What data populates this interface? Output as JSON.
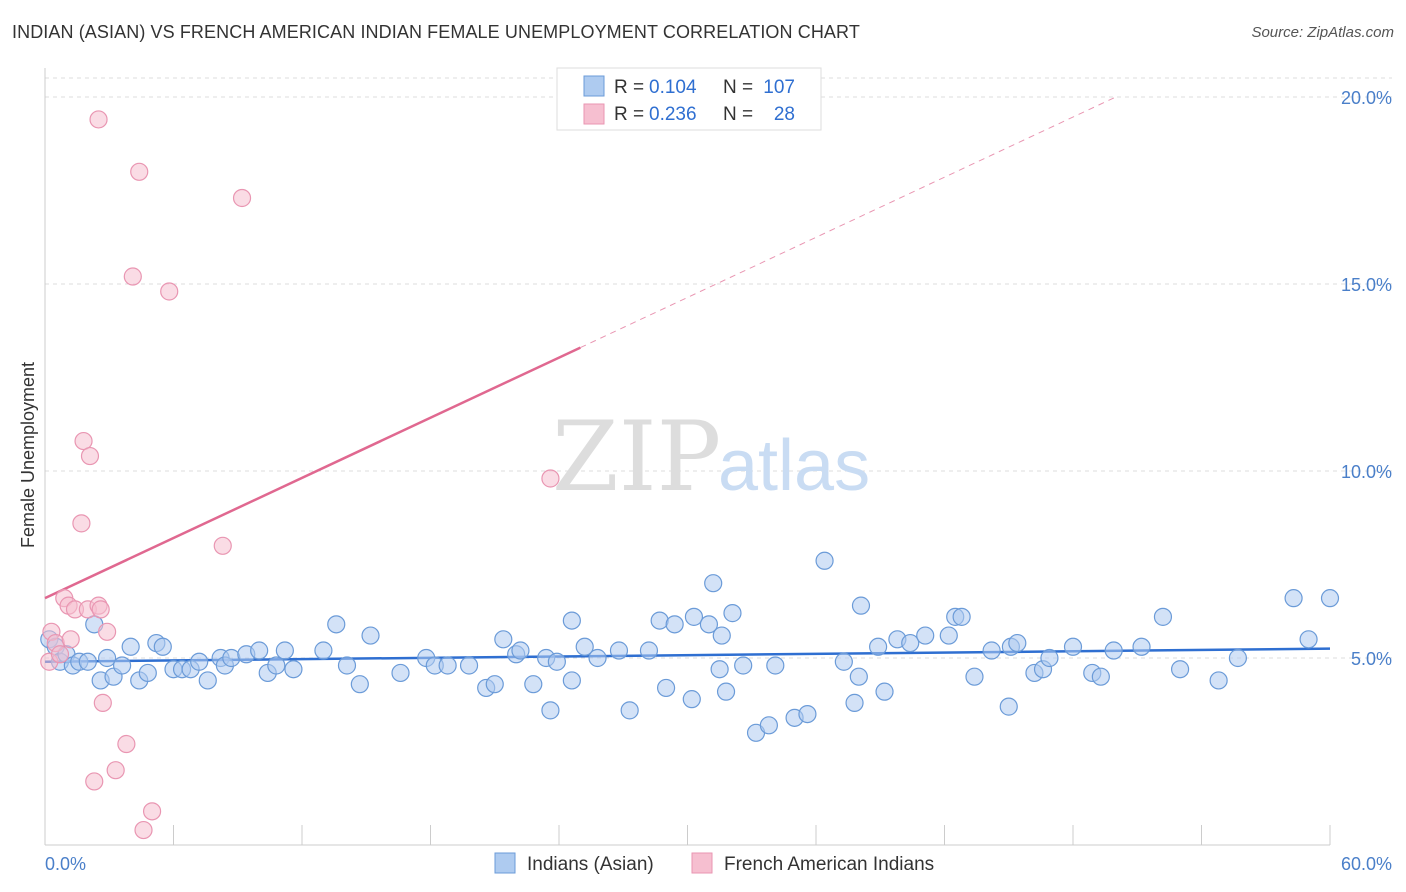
{
  "header": {
    "title": "INDIAN (ASIAN) VS FRENCH AMERICAN INDIAN FEMALE UNEMPLOYMENT CORRELATION CHART",
    "source": "Source: ZipAtlas.com"
  },
  "watermark": {
    "zip": "ZIP",
    "atlas": "atlas"
  },
  "colors": {
    "blue_fill": "#aecbf0",
    "blue_stroke": "#6b9bd8",
    "blue_line": "#2f6fd1",
    "pink_fill": "#f6bfd0",
    "pink_stroke": "#e996b2",
    "pink_line": "#e06890",
    "grid": "#dddddd",
    "tick_text": "#4a7fc9"
  },
  "legend": {
    "rows": [
      {
        "r_label": "R =",
        "r_value": "0.104",
        "n_label": "N =",
        "n_value": "107"
      },
      {
        "r_label": "R =",
        "r_value": "0.236",
        "n_label": "N =",
        "n_value": "28"
      }
    ]
  },
  "bottom_legend": [
    "Indians (Asian)",
    "French American Indians"
  ],
  "chart_data": {
    "type": "scatter",
    "ylabel": "Female Unemployment",
    "xlim": [
      0,
      60
    ],
    "ylim": [
      0,
      20
    ],
    "y_ticks": [
      {
        "value": 5,
        "label": "5.0%"
      },
      {
        "value": 10,
        "label": "10.0%"
      },
      {
        "value": 15,
        "label": "15.0%"
      },
      {
        "value": 20,
        "label": "20.0%"
      }
    ],
    "x_ticks": [
      {
        "value": 0,
        "label": "0.0%"
      },
      {
        "value": 60,
        "label": "60.0%"
      }
    ],
    "x_minor_ticks": [
      6,
      12,
      18,
      24,
      30,
      36,
      42,
      48,
      54,
      60
    ],
    "grid": true,
    "legend_position": "top-center",
    "series": [
      {
        "name": "Indians (Asian)",
        "color": "#aecbf0",
        "trend": {
          "x": [
            0,
            60
          ],
          "y": [
            4.9,
            5.25
          ],
          "style": "solid"
        },
        "points": [
          [
            0.2,
            5.5
          ],
          [
            0.5,
            5.3
          ],
          [
            0.7,
            4.9
          ],
          [
            1.0,
            5.1
          ],
          [
            1.3,
            4.8
          ],
          [
            1.6,
            4.9
          ],
          [
            2.0,
            4.9
          ],
          [
            2.3,
            5.9
          ],
          [
            2.6,
            4.4
          ],
          [
            2.9,
            5.0
          ],
          [
            3.2,
            4.5
          ],
          [
            3.6,
            4.8
          ],
          [
            4.0,
            5.3
          ],
          [
            4.4,
            4.4
          ],
          [
            4.8,
            4.6
          ],
          [
            5.2,
            5.4
          ],
          [
            5.5,
            5.3
          ],
          [
            6.0,
            4.7
          ],
          [
            6.4,
            4.7
          ],
          [
            6.8,
            4.7
          ],
          [
            7.2,
            4.9
          ],
          [
            7.6,
            4.4
          ],
          [
            8.2,
            5.0
          ],
          [
            8.4,
            4.8
          ],
          [
            8.7,
            5.0
          ],
          [
            9.4,
            5.1
          ],
          [
            10.0,
            5.2
          ],
          [
            10.4,
            4.6
          ],
          [
            10.8,
            4.8
          ],
          [
            11.2,
            5.2
          ],
          [
            11.6,
            4.7
          ],
          [
            13.0,
            5.2
          ],
          [
            13.6,
            5.9
          ],
          [
            14.1,
            4.8
          ],
          [
            14.7,
            4.3
          ],
          [
            15.2,
            5.6
          ],
          [
            16.6,
            4.6
          ],
          [
            17.8,
            5.0
          ],
          [
            18.2,
            4.8
          ],
          [
            18.8,
            4.8
          ],
          [
            19.8,
            4.8
          ],
          [
            20.6,
            4.2
          ],
          [
            21.0,
            4.3
          ],
          [
            21.4,
            5.5
          ],
          [
            22.0,
            5.1
          ],
          [
            22.2,
            5.2
          ],
          [
            22.8,
            4.3
          ],
          [
            23.4,
            5.0
          ],
          [
            23.6,
            3.6
          ],
          [
            23.9,
            4.9
          ],
          [
            24.6,
            4.4
          ],
          [
            25.2,
            5.3
          ],
          [
            25.8,
            5.0
          ],
          [
            26.8,
            5.2
          ],
          [
            27.3,
            3.6
          ],
          [
            28.2,
            5.2
          ],
          [
            28.7,
            6.0
          ],
          [
            29.0,
            4.2
          ],
          [
            29.4,
            5.9
          ],
          [
            30.2,
            3.9
          ],
          [
            30.3,
            6.1
          ],
          [
            31.0,
            5.9
          ],
          [
            31.5,
            4.7
          ],
          [
            31.6,
            5.6
          ],
          [
            31.8,
            4.1
          ],
          [
            32.1,
            6.2
          ],
          [
            32.6,
            4.8
          ],
          [
            33.2,
            3.0
          ],
          [
            33.8,
            3.2
          ],
          [
            34.1,
            4.8
          ],
          [
            35.0,
            3.4
          ],
          [
            35.6,
            3.5
          ],
          [
            36.4,
            7.6
          ],
          [
            37.3,
            4.9
          ],
          [
            37.8,
            3.8
          ],
          [
            38.0,
            4.5
          ],
          [
            38.9,
            5.3
          ],
          [
            39.2,
            4.1
          ],
          [
            39.8,
            5.5
          ],
          [
            40.4,
            5.4
          ],
          [
            41.1,
            5.6
          ],
          [
            42.2,
            5.6
          ],
          [
            42.5,
            6.1
          ],
          [
            42.8,
            6.1
          ],
          [
            43.4,
            4.5
          ],
          [
            44.2,
            5.2
          ],
          [
            45.0,
            3.7
          ],
          [
            45.1,
            5.3
          ],
          [
            45.4,
            5.4
          ],
          [
            46.2,
            4.6
          ],
          [
            46.6,
            4.7
          ],
          [
            46.9,
            5.0
          ],
          [
            48.0,
            5.3
          ],
          [
            48.9,
            4.6
          ],
          [
            49.3,
            4.5
          ],
          [
            49.9,
            5.2
          ],
          [
            51.2,
            5.3
          ],
          [
            52.2,
            6.1
          ],
          [
            53.0,
            4.7
          ],
          [
            54.8,
            4.4
          ],
          [
            55.7,
            5.0
          ],
          [
            58.3,
            6.6
          ],
          [
            59.0,
            5.5
          ],
          [
            60.0,
            6.6
          ],
          [
            24.6,
            6.0
          ],
          [
            31.2,
            7.0
          ],
          [
            38.1,
            6.4
          ]
        ]
      },
      {
        "name": "French American Indians",
        "color": "#f6bfd0",
        "trend": {
          "x": [
            0,
            25
          ],
          "y": [
            6.6,
            13.3
          ],
          "style": "solid",
          "extend_to": [
            50,
            20.0
          ],
          "extend_style": "dashed"
        },
        "points": [
          [
            0.2,
            4.9
          ],
          [
            0.3,
            5.7
          ],
          [
            0.5,
            5.4
          ],
          [
            0.7,
            5.1
          ],
          [
            0.9,
            6.6
          ],
          [
            1.1,
            6.4
          ],
          [
            1.2,
            5.5
          ],
          [
            1.4,
            6.3
          ],
          [
            1.7,
            8.6
          ],
          [
            1.8,
            10.8
          ],
          [
            2.0,
            6.3
          ],
          [
            2.1,
            10.4
          ],
          [
            2.3,
            1.7
          ],
          [
            2.5,
            6.4
          ],
          [
            2.6,
            6.3
          ],
          [
            2.7,
            3.8
          ],
          [
            2.9,
            5.7
          ],
          [
            3.3,
            2.0
          ],
          [
            3.8,
            2.7
          ],
          [
            4.1,
            15.2
          ],
          [
            4.4,
            18.0
          ],
          [
            4.6,
            0.4
          ],
          [
            5.0,
            0.9
          ],
          [
            5.8,
            14.8
          ],
          [
            8.3,
            8.0
          ],
          [
            9.2,
            17.3
          ],
          [
            2.5,
            19.4
          ],
          [
            23.6,
            9.8
          ]
        ]
      }
    ]
  }
}
